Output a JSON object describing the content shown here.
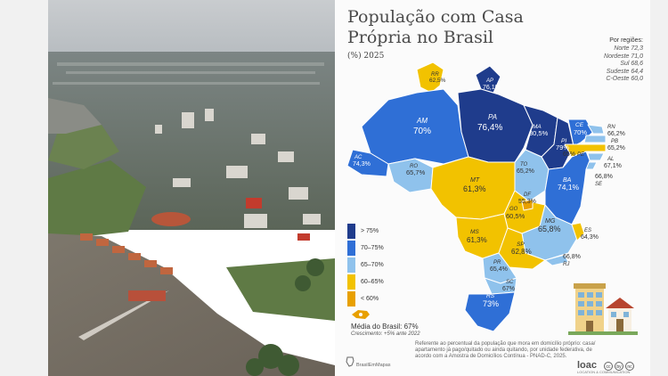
{
  "title": "População com Casa Própria no Brasil",
  "subtitle": "(%) 2025",
  "regions": {
    "title": "Por regiões:",
    "items": [
      "Norte 72,3",
      "Nordeste 71,0",
      "Sul 68,6",
      "Sudeste 64,4",
      "C-Oeste 60,0"
    ]
  },
  "states": [
    {
      "uf": "RR",
      "value": "62,5%"
    },
    {
      "uf": "AP",
      "value": "76,1%"
    },
    {
      "uf": "AM",
      "value": "70%"
    },
    {
      "uf": "PA",
      "value": "76,4%"
    },
    {
      "uf": "MA",
      "value": "80,5%"
    },
    {
      "uf": "CE",
      "value": "70%"
    },
    {
      "uf": "RN",
      "value": "66,2%"
    },
    {
      "uf": "PB",
      "value": "65,2%"
    },
    {
      "uf": "PE",
      "value": "65%"
    },
    {
      "uf": "PI",
      "value": "79%"
    },
    {
      "uf": "AL",
      "value": "67,1%"
    },
    {
      "uf": "SE",
      "value": "66,8%"
    },
    {
      "uf": "AC",
      "value": "74,3%"
    },
    {
      "uf": "RO",
      "value": "65,7%"
    },
    {
      "uf": "TO",
      "value": "65,2%"
    },
    {
      "uf": "MT",
      "value": "61,3%"
    },
    {
      "uf": "BA",
      "value": "74,1%"
    },
    {
      "uf": "DF",
      "value": "55,3%"
    },
    {
      "uf": "GO",
      "value": "60,5%"
    },
    {
      "uf": "MG",
      "value": "65,8%"
    },
    {
      "uf": "MS",
      "value": "61,3%"
    },
    {
      "uf": "ES",
      "value": "64,3%"
    },
    {
      "uf": "SP",
      "value": "62,8%"
    },
    {
      "uf": "RJ",
      "value": "66,8%"
    },
    {
      "uf": "PR",
      "value": "65,4%"
    },
    {
      "uf": "SC",
      "value": "67%"
    },
    {
      "uf": "RS",
      "value": "73%"
    }
  ],
  "legend": [
    {
      "label": "> 75%",
      "color": "#1f3c8c"
    },
    {
      "label": "70–75%",
      "color": "#2f6fd6"
    },
    {
      "label": "65–70%",
      "color": "#8fc2ec"
    },
    {
      "label": "60–65%",
      "color": "#f2c200"
    },
    {
      "label": "< 60%",
      "color": "#e8a000"
    }
  ],
  "mean": {
    "label": "Média do Brasil: 67%",
    "growth": "Crescimento: +5% ante 2022"
  },
  "footnote": "Referente ao percentual da população que mora em domicílio próprio: casa/ apartamento já pago/quitado ou ainda quitando, por unidade federativa, de acordo com a Amostra de Domicílios Contínua - PNAD-C, 2025.",
  "brand": "BrasilEmMapas",
  "logo_text": "loac",
  "logo_sub": "LOCATION & COMMUNICATION",
  "license_icons": [
    "cc",
    "by",
    "nc"
  ]
}
